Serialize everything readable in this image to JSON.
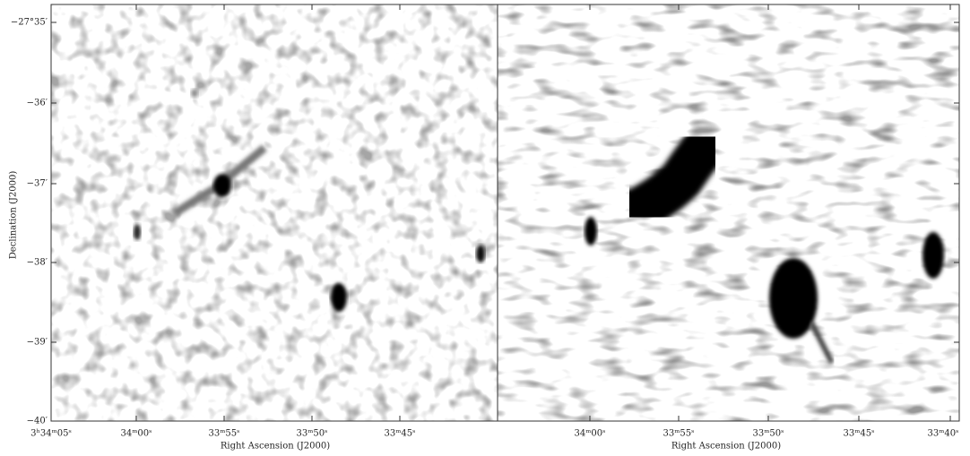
{
  "figure": {
    "y_axis_label": "Declination (J2000)",
    "y_ticks": [
      "−27°35′",
      "−36′",
      "−37′",
      "−38′",
      "−39′",
      "−40′"
    ],
    "panels": [
      {
        "x_axis_label": "Right Ascension (J2000)",
        "x_ticks": [
          "3ʰ34ᵐ05ˢ",
          "34ᵐ00ˢ",
          "33ᵐ55ˢ",
          "33ᵐ50ˢ",
          "33ᵐ45ˢ"
        ]
      },
      {
        "x_axis_label": "Right Ascension (J2000)",
        "x_ticks": [
          "34ᵐ00ˢ",
          "33ᵐ55ˢ",
          "33ᵐ50ˢ",
          "33ᵐ45ˢ",
          "33ᵐ40ˢ"
        ]
      }
    ]
  }
}
